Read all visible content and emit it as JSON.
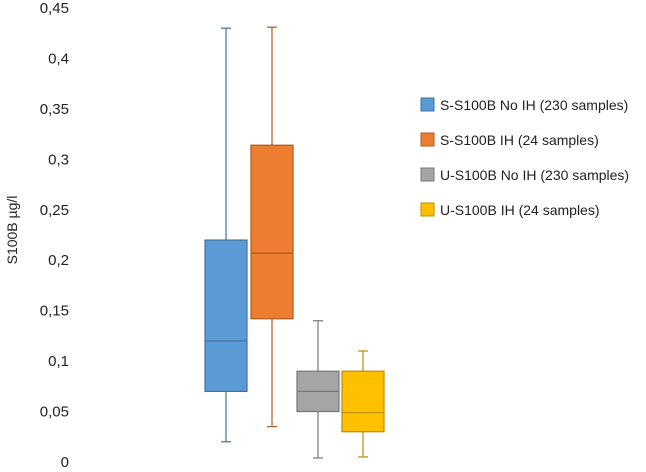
{
  "chart_data": {
    "type": "box",
    "title": "",
    "xlabel": "",
    "ylabel": "S100B µg/l",
    "ylim": [
      0,
      0.45
    ],
    "yticks": [
      "0",
      "0,05",
      "0,1",
      "0,15",
      "0,2",
      "0,25",
      "0,3",
      "0,35",
      "0,4",
      "0,45"
    ],
    "grid": false,
    "legend_position": "right",
    "series": [
      {
        "name": "S-S100B No IH (230 samples)",
        "color": "#5B9BD5",
        "stroke": "#41719C",
        "min": 0.02,
        "q1": 0.07,
        "median": 0.12,
        "q3": 0.22,
        "max": 0.43
      },
      {
        "name": "S-S100B IH (24 samples)",
        "color": "#ED7D31",
        "stroke": "#AE5A21",
        "min": 0.035,
        "q1": 0.142,
        "median": 0.207,
        "q3": 0.314,
        "max": 0.431
      },
      {
        "name": "U-S100B No IH (230 samples)",
        "color": "#A5A5A5",
        "stroke": "#787878",
        "min": 0.004,
        "q1": 0.05,
        "median": 0.07,
        "q3": 0.09,
        "max": 0.14
      },
      {
        "name": "U-S100B IH (24 samples)",
        "color": "#FFC000",
        "stroke": "#BC8C00",
        "min": 0.005,
        "q1": 0.03,
        "median": 0.049,
        "q3": 0.09,
        "max": 0.11
      }
    ]
  }
}
